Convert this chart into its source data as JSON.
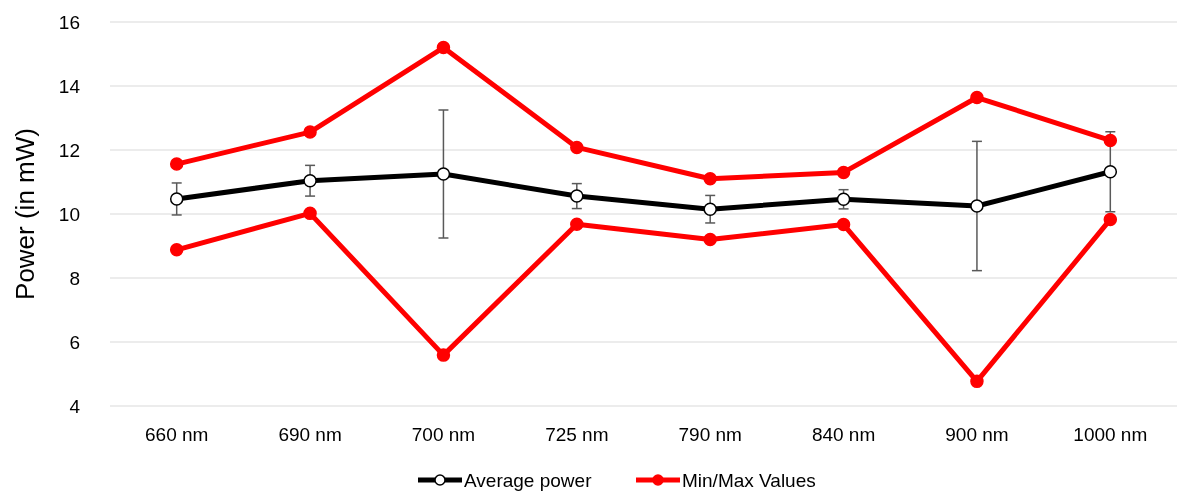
{
  "chart_data": {
    "type": "line",
    "ylabel": "Power (in mW)",
    "categories": [
      "660 nm",
      "690 nm",
      "700 nm",
      "725 nm",
      "790 nm",
      "840 nm",
      "900 nm",
      "1000 nm"
    ],
    "series": [
      {
        "name": "Average power",
        "color": "#000000",
        "values": [
          10.47,
          11.04,
          11.25,
          10.56,
          10.15,
          10.46,
          10.25,
          11.32
        ],
        "errors": [
          0.5,
          0.48,
          2.0,
          0.39,
          0.43,
          0.3,
          2.02,
          1.25
        ]
      },
      {
        "name": "Min/Max Values",
        "color": "#ff0000",
        "values": [
          11.56,
          12.56,
          15.2,
          12.08,
          11.1,
          11.3,
          13.64,
          12.3
        ]
      },
      {
        "color": "#ff0000",
        "values": [
          8.88,
          10.02,
          5.59,
          9.68,
          9.2,
          9.67,
          4.77,
          9.83
        ]
      }
    ],
    "ylim": [
      4,
      16
    ],
    "yticks": [
      4,
      6,
      8,
      10,
      12,
      14,
      16
    ],
    "grid": "y",
    "legend": "bottom",
    "marker": "circle",
    "line_style": "solid"
  }
}
